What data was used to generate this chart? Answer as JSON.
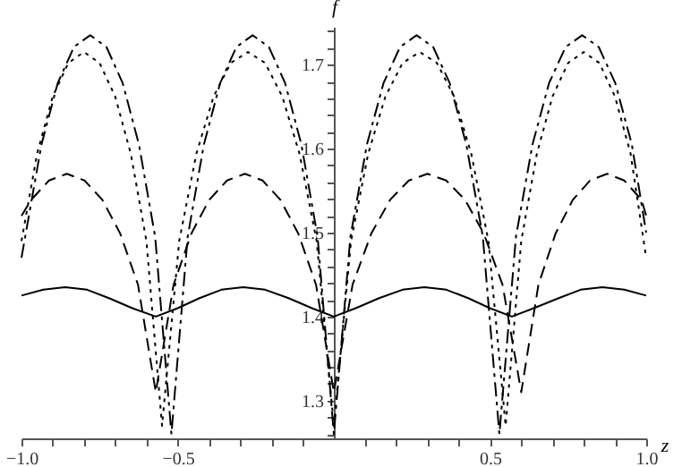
{
  "chart_data": {
    "type": "line",
    "xlabel": "z",
    "ylabel": "f",
    "xlim": [
      -1.0,
      1.0
    ],
    "ylim": [
      1.255,
      1.745
    ],
    "xticks": [
      {
        "value": -1.0,
        "label": "−1.0"
      },
      {
        "value": -0.9,
        "label": null
      },
      {
        "value": -0.8,
        "label": null
      },
      {
        "value": -0.7,
        "label": null
      },
      {
        "value": -0.6,
        "label": null
      },
      {
        "value": -0.5,
        "label": "−0.5"
      },
      {
        "value": -0.4,
        "label": null
      },
      {
        "value": -0.3,
        "label": null
      },
      {
        "value": -0.2,
        "label": null
      },
      {
        "value": -0.1,
        "label": null
      },
      {
        "value": 0.1,
        "label": null
      },
      {
        "value": 0.2,
        "label": null
      },
      {
        "value": 0.3,
        "label": null
      },
      {
        "value": 0.4,
        "label": null
      },
      {
        "value": 0.5,
        "label": "0.5"
      },
      {
        "value": 0.6,
        "label": null
      },
      {
        "value": 0.7,
        "label": null
      },
      {
        "value": 0.8,
        "label": null
      },
      {
        "value": 0.9,
        "label": null
      },
      {
        "value": 1.0,
        "label": "1.0"
      }
    ],
    "yticks": [
      {
        "value": 1.26,
        "label": null
      },
      {
        "value": 1.28,
        "label": null
      },
      1.3,
      {
        "value": 1.32,
        "label": null
      },
      {
        "value": 1.34,
        "label": null
      },
      {
        "value": 1.36,
        "label": null
      },
      {
        "value": 1.38,
        "label": null
      },
      1.4,
      {
        "value": 1.42,
        "label": null
      },
      {
        "value": 1.44,
        "label": null
      },
      {
        "value": 1.46,
        "label": null
      },
      {
        "value": 1.48,
        "label": null
      },
      1.5,
      {
        "value": 1.52,
        "label": null
      },
      {
        "value": 1.54,
        "label": null
      },
      {
        "value": 1.56,
        "label": null
      },
      {
        "value": 1.58,
        "label": null
      },
      1.6,
      {
        "value": 1.62,
        "label": null
      },
      {
        "value": 1.64,
        "label": null
      },
      {
        "value": 1.66,
        "label": null
      },
      {
        "value": 1.68,
        "label": null
      },
      1.7,
      {
        "value": 1.72,
        "label": null
      },
      {
        "value": 1.74,
        "label": null
      }
    ],
    "grid": false,
    "marker": "none",
    "series": [
      {
        "color": "#000000",
        "line_style": "solid",
        "x": [
          -1,
          -0.93,
          -0.86,
          -0.79,
          -0.72,
          -0.645,
          -0.57,
          -0.5,
          -0.43,
          -0.36,
          -0.29,
          -0.22,
          -0.145,
          -0.07,
          0,
          0.07,
          0.145,
          0.22,
          0.29,
          0.36,
          0.43,
          0.5,
          0.57,
          0.64,
          0.72,
          0.79,
          0.86,
          0.93,
          1
        ],
        "values": [
          1.425,
          1.432,
          1.435,
          1.432,
          1.422,
          1.41,
          1.4,
          1.41,
          1.422,
          1.432,
          1.435,
          1.432,
          1.422,
          1.41,
          1.4,
          1.41,
          1.422,
          1.432,
          1.435,
          1.432,
          1.422,
          1.41,
          1.4,
          1.41,
          1.422,
          1.432,
          1.435,
          1.432,
          1.425
        ]
      },
      {
        "color": "#000000",
        "line_style": "dashed",
        "x": [
          -1,
          -0.969,
          -0.912,
          -0.855,
          -0.798,
          -0.741,
          -0.684,
          -0.627,
          -0.57,
          -0.513,
          -0.456,
          -0.399,
          -0.342,
          -0.285,
          -0.228,
          -0.171,
          -0.114,
          -0.057,
          0,
          0.06,
          0.12,
          0.18,
          0.24,
          0.3,
          0.36,
          0.42,
          0.48,
          0.54,
          0.6,
          0.655,
          0.71,
          0.765,
          0.82,
          0.875,
          0.93,
          0.985,
          1
        ],
        "values": [
          1.52,
          1.539,
          1.562,
          1.57,
          1.562,
          1.539,
          1.499,
          1.438,
          1.31,
          1.438,
          1.499,
          1.539,
          1.562,
          1.57,
          1.562,
          1.539,
          1.499,
          1.438,
          1.31,
          1.438,
          1.499,
          1.539,
          1.562,
          1.57,
          1.562,
          1.539,
          1.499,
          1.438,
          1.31,
          1.438,
          1.499,
          1.539,
          1.562,
          1.57,
          1.562,
          1.539,
          1.52
        ]
      },
      {
        "color": "#000000",
        "line_style": "dotted",
        "x": [
          -1,
          -0.95,
          -0.9,
          -0.85,
          -0.8,
          -0.75,
          -0.7,
          -0.65,
          -0.6,
          -0.55,
          -0.495,
          -0.44,
          -0.385,
          -0.33,
          -0.275,
          -0.22,
          -0.165,
          -0.11,
          -0.055,
          0,
          0.055,
          0.11,
          0.165,
          0.22,
          0.275,
          0.33,
          0.385,
          0.44,
          0.495,
          0.55,
          0.6,
          0.65,
          0.7,
          0.75,
          0.8,
          0.85,
          0.9,
          0.95,
          1
        ],
        "values": [
          1.49,
          1.594,
          1.662,
          1.702,
          1.715,
          1.702,
          1.662,
          1.594,
          1.49,
          1.27,
          1.49,
          1.594,
          1.662,
          1.702,
          1.715,
          1.702,
          1.662,
          1.594,
          1.49,
          1.27,
          1.49,
          1.594,
          1.662,
          1.702,
          1.715,
          1.702,
          1.662,
          1.594,
          1.49,
          1.27,
          1.49,
          1.594,
          1.662,
          1.702,
          1.715,
          1.702,
          1.662,
          1.594,
          1.47
        ]
      },
      {
        "color": "#000000",
        "line_style": "dashdot",
        "x": [
          -1,
          -0.936,
          -0.884,
          -0.832,
          -0.78,
          -0.728,
          -0.676,
          -0.624,
          -0.572,
          -0.52,
          -0.468,
          -0.416,
          -0.364,
          -0.312,
          -0.26,
          -0.208,
          -0.156,
          -0.104,
          -0.052,
          0,
          0.053,
          0.106,
          0.159,
          0.212,
          0.265,
          0.318,
          0.371,
          0.424,
          0.477,
          0.53,
          0.583,
          0.636,
          0.689,
          0.742,
          0.795,
          0.848,
          0.901,
          0.954,
          1
        ],
        "values": [
          1.47,
          1.605,
          1.678,
          1.721,
          1.735,
          1.721,
          1.678,
          1.605,
          1.495,
          1.26,
          1.495,
          1.605,
          1.678,
          1.721,
          1.735,
          1.721,
          1.678,
          1.605,
          1.495,
          1.26,
          1.495,
          1.605,
          1.678,
          1.721,
          1.735,
          1.721,
          1.678,
          1.605,
          1.495,
          1.26,
          1.495,
          1.605,
          1.678,
          1.721,
          1.735,
          1.721,
          1.678,
          1.605,
          1.5
        ]
      }
    ]
  }
}
